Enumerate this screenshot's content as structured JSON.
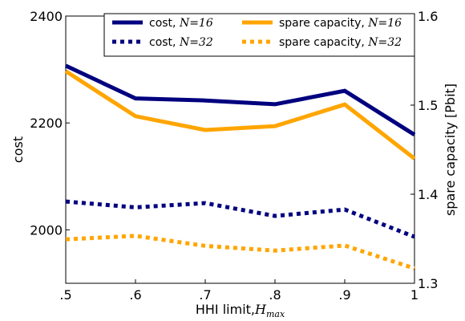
{
  "chart_data": {
    "type": "line",
    "title": "",
    "xlabel": "HHI limit,",
    "xlabel_math": "H",
    "xlabel_sub": "max",
    "ylabel_left": "cost",
    "ylabel_right": "spare capacity [Pbit]",
    "x": [
      0.5,
      0.6,
      0.7,
      0.8,
      0.9,
      1.0
    ],
    "x_tick_labels": [
      ".5",
      ".6",
      ".7",
      ".8",
      ".9",
      "1"
    ],
    "xlim": [
      0.5,
      1.0
    ],
    "ylim_left": [
      1900,
      2400
    ],
    "y_ticks_left": [
      2000,
      2200,
      2400
    ],
    "y_tick_labels_left": [
      "2000",
      "2200",
      "2400"
    ],
    "ylim_right": [
      1.3,
      1.6
    ],
    "y_ticks_right": [
      1.3,
      1.4,
      1.5,
      1.6
    ],
    "y_tick_labels_right": [
      "1.3",
      "1.4",
      "1.5",
      "1.6"
    ],
    "grid": false,
    "legend_position": "top-right",
    "series": [
      {
        "name": "cost, ",
        "math": "N",
        "eq": "=16",
        "axis": "left",
        "color": "#00007f",
        "dash": "solid",
        "values": [
          2307,
          2246,
          2242,
          2235,
          2260,
          2178
        ]
      },
      {
        "name": "cost, ",
        "math": "N",
        "eq": "=32",
        "axis": "left",
        "color": "#00007f",
        "dash": "dotted",
        "values": [
          2053,
          2042,
          2050,
          2026,
          2038,
          1987
        ]
      },
      {
        "name": "spare capacity, ",
        "math": "N",
        "eq": "=16",
        "axis": "right",
        "color": "#ffa500",
        "dash": "solid",
        "values": [
          1.5381,
          1.4876,
          1.4721,
          1.4764,
          1.5007,
          1.44
        ]
      },
      {
        "name": "spare capacity, ",
        "math": "N",
        "eq": "=32",
        "axis": "right",
        "color": "#ffa500",
        "dash": "dotted",
        "values": [
          1.3493,
          1.3532,
          1.342,
          1.3367,
          1.3424,
          1.3167
        ]
      }
    ]
  }
}
